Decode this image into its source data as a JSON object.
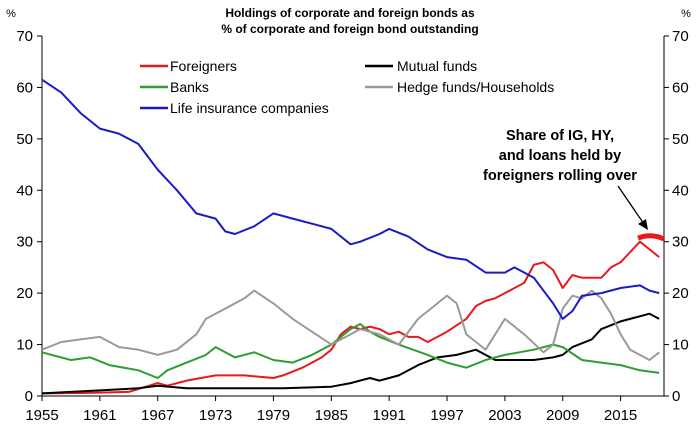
{
  "chart_data": {
    "type": "line",
    "title": "Holdings of corporate and foreign bonds as",
    "subtitle": "% of corporate and foreign bond outstanding",
    "left_unit": "%",
    "right_unit": "%",
    "xlim": [
      1955,
      2019.5
    ],
    "ylim": [
      0,
      70
    ],
    "y_ticks": [
      "0",
      "10",
      "20",
      "30",
      "40",
      "50",
      "60",
      "70"
    ],
    "x_ticks": [
      "1955",
      "1961",
      "1967",
      "1973",
      "1979",
      "1985",
      "1991",
      "1997",
      "2003",
      "2009",
      "2015"
    ],
    "annotation": [
      "Share of IG, HY,",
      "and loans held by",
      "foreigners rolling over"
    ],
    "series": [
      {
        "name": "Foreigners",
        "color": "#e8191d",
        "x": [
          1955,
          1960,
          1964,
          1967,
          1968,
          1970,
          1973,
          1976,
          1979,
          1980,
          1982,
          1984,
          1985,
          1986,
          1987,
          1988,
          1989,
          1990,
          1991,
          1992,
          1993,
          1994,
          1995,
          1996,
          1997,
          1999,
          2000,
          2001,
          2002,
          2003,
          2004,
          2005,
          2006,
          2007,
          2008,
          2009,
          2010,
          2011,
          2012,
          2013,
          2014,
          2015,
          2016,
          2017,
          2018,
          2019
        ],
        "values": [
          0.5,
          0.6,
          0.8,
          2.5,
          2.0,
          3.0,
          4.0,
          4.0,
          3.5,
          4.0,
          5.5,
          7.5,
          9.0,
          12.0,
          13.5,
          13.0,
          13.5,
          13.0,
          12.0,
          12.5,
          11.5,
          11.5,
          10.5,
          11.5,
          12.5,
          15.0,
          17.5,
          18.5,
          19.0,
          20.0,
          21.0,
          22.0,
          25.5,
          26.0,
          24.5,
          21.0,
          23.5,
          23.0,
          23.0,
          23.0,
          25.0,
          26.0,
          28.0,
          30.0,
          28.5,
          27.0
        ]
      },
      {
        "name": "Mutual funds",
        "color": "#000000",
        "x": [
          1955,
          1960,
          1965,
          1967,
          1970,
          1975,
          1980,
          1985,
          1987,
          1989,
          1990,
          1992,
          1994,
          1996,
          1998,
          2000,
          2002,
          2004,
          2006,
          2008,
          2009,
          2010,
          2012,
          2013,
          2015,
          2017,
          2018,
          2019
        ],
        "values": [
          0.5,
          1.0,
          1.5,
          2.0,
          1.5,
          1.5,
          1.5,
          1.8,
          2.5,
          3.5,
          3.0,
          4.0,
          6.0,
          7.5,
          8.0,
          9.0,
          7.0,
          7.0,
          7.0,
          7.5,
          8.0,
          9.5,
          11.0,
          13.0,
          14.5,
          15.5,
          16.0,
          15.0
        ]
      },
      {
        "name": "Banks",
        "color": "#2e9d31",
        "x": [
          1955,
          1958,
          1960,
          1962,
          1965,
          1967,
          1968,
          1970,
          1972,
          1973,
          1975,
          1977,
          1979,
          1981,
          1983,
          1985,
          1987,
          1988,
          1989,
          1990,
          1992,
          1995,
          1997,
          1999,
          2001,
          2003,
          2006,
          2008,
          2009,
          2011,
          2013,
          2015,
          2017,
          2019
        ],
        "values": [
          8.5,
          7.0,
          7.5,
          6.0,
          5.0,
          3.5,
          5.0,
          6.5,
          8.0,
          9.5,
          7.5,
          8.5,
          7.0,
          6.5,
          8.0,
          10.0,
          13.0,
          14.0,
          12.5,
          11.5,
          10.0,
          8.0,
          6.5,
          5.5,
          7.0,
          8.0,
          9.0,
          10.0,
          9.5,
          7.0,
          6.5,
          6.0,
          5.0,
          4.5
        ]
      },
      {
        "name": "Hedge funds/Households",
        "color": "#9a9a9a",
        "x": [
          1955,
          1957,
          1959,
          1961,
          1963,
          1965,
          1967,
          1969,
          1971,
          1972,
          1974,
          1976,
          1977,
          1979,
          1981,
          1983,
          1985,
          1987,
          1988,
          1990,
          1992,
          1994,
          1996,
          1997,
          1998,
          1999,
          2000,
          2001,
          2002,
          2003,
          2005,
          2007,
          2008,
          2009,
          2010,
          2011,
          2012,
          2013,
          2014,
          2015,
          2016,
          2017,
          2018,
          2019
        ],
        "values": [
          9.0,
          10.5,
          11.0,
          11.5,
          9.5,
          9.0,
          8.0,
          9.0,
          12.0,
          15.0,
          17.0,
          19.0,
          20.5,
          18.0,
          15.0,
          12.5,
          10.0,
          12.0,
          13.0,
          12.0,
          10.0,
          15.0,
          18.0,
          19.5,
          18.0,
          12.0,
          10.5,
          9.0,
          12.0,
          15.0,
          12.0,
          8.5,
          10.0,
          17.0,
          19.5,
          19.0,
          20.5,
          19.0,
          16.0,
          12.0,
          9.0,
          8.0,
          7.0,
          8.5
        ]
      },
      {
        "name": "Life insurance companies",
        "color": "#1b1bc5",
        "x": [
          1955,
          1957,
          1959,
          1961,
          1963,
          1965,
          1967,
          1969,
          1971,
          1973,
          1974,
          1975,
          1977,
          1979,
          1981,
          1983,
          1985,
          1987,
          1988,
          1990,
          1991,
          1993,
          1995,
          1997,
          1999,
          2001,
          2003,
          2004,
          2006,
          2008,
          2009,
          2010,
          2011,
          2013,
          2015,
          2017,
          2018,
          2019
        ],
        "values": [
          61.5,
          59.0,
          55.0,
          52.0,
          51.0,
          49.0,
          44.0,
          40.0,
          35.5,
          34.5,
          32.0,
          31.5,
          33.0,
          35.5,
          34.5,
          33.5,
          32.5,
          29.5,
          30.0,
          31.5,
          32.5,
          31.0,
          28.5,
          27.0,
          26.5,
          24.0,
          24.0,
          25.0,
          23.0,
          18.0,
          15.0,
          16.5,
          19.5,
          20.0,
          21.0,
          21.5,
          20.5,
          20.0
        ]
      }
    ]
  }
}
